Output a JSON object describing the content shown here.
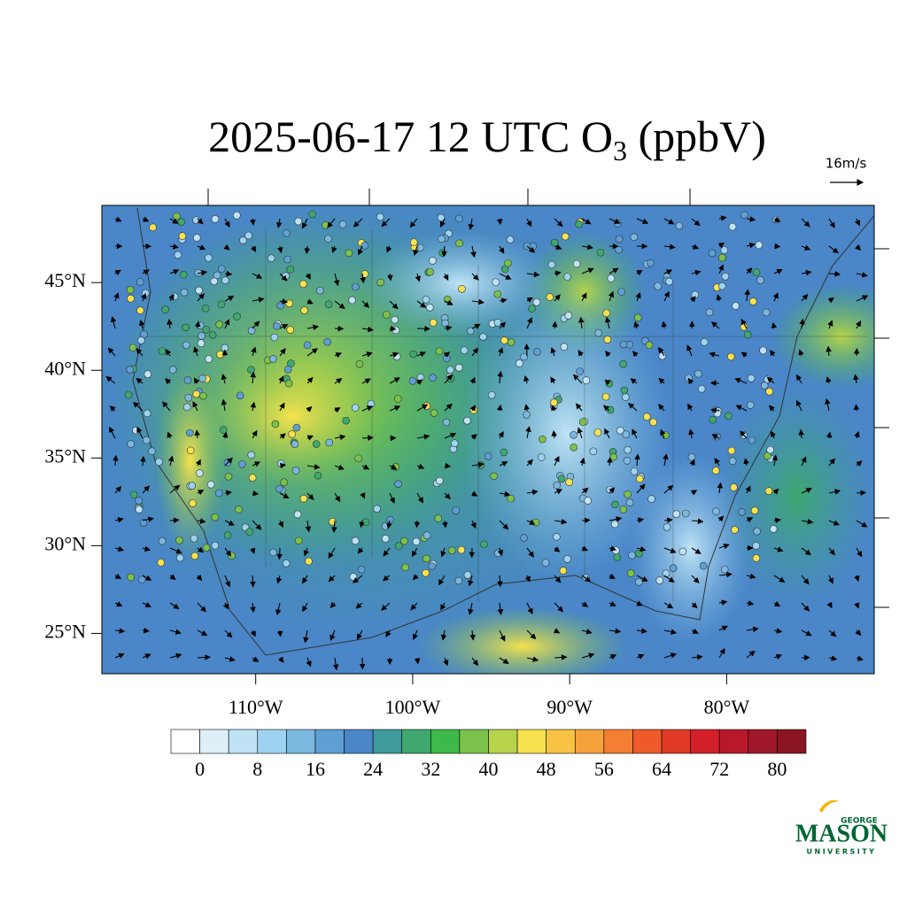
{
  "map": {
    "title": {
      "main": "2025-06-17 12 UTC O",
      "subscript": "3",
      "suffix": " (ppbV)"
    },
    "wind_scale_label": "16m/s",
    "lat_range": [
      22.7,
      49.4
    ],
    "lon_range": [
      -119.8,
      -70.6
    ],
    "lat_ticks": [
      {
        "value": 45,
        "label": "45°N"
      },
      {
        "value": 40,
        "label": "40°N"
      },
      {
        "value": 35,
        "label": "35°N"
      },
      {
        "value": 30,
        "label": "30°N"
      },
      {
        "value": 25,
        "label": "25°N"
      }
    ],
    "lon_ticks": [
      {
        "value": -110,
        "label": "110°W"
      },
      {
        "value": -100,
        "label": "100°W"
      },
      {
        "value": -90,
        "label": "90°W"
      },
      {
        "value": -80,
        "label": "80°W"
      }
    ],
    "colorbar": {
      "lim": [
        -4,
        84
      ],
      "ticks": [
        0,
        8,
        16,
        24,
        32,
        40,
        48,
        56,
        64,
        72,
        80
      ],
      "colors": [
        "#ffffff",
        "#deeff8",
        "#bfe3f5",
        "#9dd3f0",
        "#7bb8e0",
        "#5e9fd6",
        "#4a86c8",
        "#3f9a9c",
        "#3ea86f",
        "#3db84a",
        "#7cc24a",
        "#b6d34b",
        "#f6e24f",
        "#f8c244",
        "#f6a23c",
        "#f47f32",
        "#ee5a2a",
        "#e03a26",
        "#d21f2a",
        "#b8192a",
        "#a0182a",
        "#8a1520"
      ]
    },
    "logo": {
      "top": "GEORGE",
      "main": "MASON",
      "bottom": "UNIVERSITY"
    }
  }
}
